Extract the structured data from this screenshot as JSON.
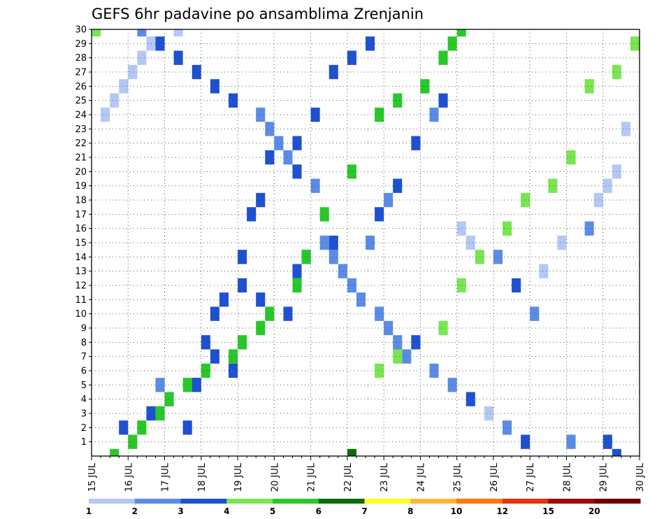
{
  "chart_data": {
    "type": "heatmap",
    "title": "GEFS 6hr padavine po ansamblima Zrenjanin",
    "x_start_day": 15,
    "x_end_day": 30,
    "steps_per_day": 4,
    "x_tick_labels": [
      "15 JUL",
      "16 JUL",
      "17 JUL",
      "18 JUL",
      "19 JUL",
      "20 JUL",
      "21 JUL",
      "22 JUL",
      "23 JUL",
      "24 JUL",
      "25 JUL",
      "26 JUL",
      "27 JUL",
      "28 JUL",
      "29 JUL",
      "30 JUL"
    ],
    "y_tick_labels": [
      "1",
      "2",
      "3",
      "4",
      "5",
      "6",
      "7",
      "8",
      "9",
      "10",
      "11",
      "12",
      "13",
      "14",
      "15",
      "16",
      "17",
      "18",
      "19",
      "20",
      "21",
      "22",
      "23",
      "24",
      "25",
      "26",
      "27",
      "28",
      "29",
      "30"
    ],
    "ylim": [
      0,
      30
    ],
    "grid": true,
    "colorbar": {
      "levels": [
        1,
        2,
        3,
        4,
        5,
        6,
        7,
        8,
        10,
        12,
        15,
        20
      ],
      "labels": [
        "1",
        "2",
        "3",
        "4",
        "5",
        "6",
        "7",
        "8",
        "10",
        "12",
        "15",
        "20"
      ],
      "colors": [
        "#b4c8f5",
        "#5a8ce6",
        "#1e50d2",
        "#78e650",
        "#28c828",
        "#0a6e0a",
        "#ffff1e",
        "#ffb43c",
        "#ff780a",
        "#e6320a",
        "#a00a0a",
        "#6e0000"
      ]
    },
    "cells": [
      [
        2,
        30,
        5
      ],
      [
        3,
        29,
        2
      ],
      [
        3,
        28,
        2
      ],
      [
        3,
        27,
        2
      ],
      [
        3,
        26,
        2
      ],
      [
        3,
        25,
        2
      ],
      [
        2,
        24,
        3
      ],
      [
        2,
        23,
        1
      ],
      [
        2,
        22,
        1
      ],
      [
        2,
        21,
        1
      ],
      [
        3,
        20,
        1
      ],
      [
        2,
        19,
        2
      ],
      [
        2,
        15,
        1
      ],
      [
        2,
        14,
        1
      ],
      [
        2,
        13,
        1
      ],
      [
        2,
        12,
        1
      ],
      [
        2,
        11,
        1
      ],
      [
        2,
        10,
        2
      ],
      [
        2,
        9,
        1
      ],
      [
        2,
        8,
        1
      ],
      [
        2,
        7,
        1
      ],
      [
        2,
        6,
        3
      ],
      [
        2,
        5,
        2
      ],
      [
        3,
        4,
        2
      ],
      [
        1,
        3,
        2
      ],
      [
        2,
        2,
        2
      ],
      [
        3,
        1,
        2
      ],
      [
        2,
        1,
        5
      ],
      [
        3,
        1,
        4
      ],
      [
        3,
        0,
        1
      ],
      [
        3,
        2,
        6
      ],
      [
        3,
        3,
        3
      ],
      [
        2,
        5,
        1
      ],
      [
        2,
        4,
        1
      ],
      [
        3,
        5,
        3
      ],
      [
        3,
        8,
        1
      ],
      [
        3,
        7,
        1
      ],
      [
        3,
        6,
        2
      ],
      [
        3,
        12,
        1
      ],
      [
        3,
        11,
        2
      ],
      [
        3,
        10,
        3
      ],
      [
        3,
        13,
        1
      ],
      [
        3,
        14,
        1
      ],
      [
        3,
        15,
        3
      ],
      [
        6,
        0,
        2
      ],
      [
        2,
        15,
        2
      ],
      [
        3,
        17,
        1
      ],
      [
        2,
        18,
        1
      ],
      [
        3,
        19,
        1
      ],
      [
        3,
        22,
        2
      ],
      [
        2,
        24,
        2
      ],
      [
        3,
        25,
        1
      ],
      [
        1,
        16,
        2
      ],
      [
        1,
        15,
        1
      ],
      [
        2,
        14,
        3
      ],
      [
        3,
        12,
        2
      ],
      [
        2,
        10,
        2
      ],
      [
        1,
        13,
        1
      ],
      [
        1,
        15,
        2
      ],
      [
        2,
        16,
        3
      ],
      [
        1,
        18,
        1
      ],
      [
        1,
        19,
        1
      ],
      [
        1,
        20,
        1
      ],
      [
        1,
        23,
        1
      ],
      [
        1,
        24,
        3
      ],
      [
        1,
        25,
        1
      ],
      [
        1,
        26,
        1
      ],
      [
        1,
        27,
        1
      ],
      [
        1,
        28,
        1
      ],
      [
        1,
        29,
        1
      ],
      [
        1,
        30,
        3
      ],
      [
        3,
        2,
        1
      ],
      [
        3,
        5,
        1
      ],
      [
        3,
        10,
        2
      ],
      [
        3,
        11,
        1
      ],
      [
        3,
        14,
        2
      ],
      [
        3,
        17,
        1
      ],
      [
        3,
        18,
        1
      ],
      [
        3,
        21,
        1
      ],
      [
        3,
        22,
        3
      ],
      [
        3,
        24,
        2
      ],
      [
        3,
        27,
        2
      ],
      [
        3,
        28,
        2
      ],
      [
        3,
        29,
        2
      ],
      [
        4,
        6,
        1
      ],
      [
        4,
        7,
        2
      ],
      [
        3,
        8,
        2
      ],
      [
        4,
        9,
        3
      ],
      [
        4,
        12,
        2
      ],
      [
        4,
        14,
        2
      ],
      [
        4,
        16,
        3
      ],
      [
        4,
        18,
        2
      ],
      [
        4,
        19,
        3
      ],
      [
        4,
        21,
        2
      ],
      [
        4,
        26,
        2
      ],
      [
        4,
        27,
        3
      ],
      [
        4,
        29,
        2
      ],
      [
        4,
        30,
        1
      ],
      [
        5,
        0,
        2
      ],
      [
        5,
        1,
        2
      ],
      [
        5,
        2,
        1
      ],
      [
        5,
        3,
        2
      ],
      [
        5,
        4,
        1
      ],
      [
        5,
        5,
        2
      ],
      [
        5,
        6,
        2
      ],
      [
        5,
        7,
        3
      ],
      [
        5,
        8,
        1
      ],
      [
        5,
        9,
        2
      ],
      [
        5,
        10,
        1
      ],
      [
        5,
        12,
        3
      ],
      [
        5,
        14,
        1
      ],
      [
        5,
        17,
        2
      ],
      [
        5,
        20,
        3
      ],
      [
        5,
        24,
        3
      ],
      [
        5,
        25,
        2
      ],
      [
        5,
        26,
        3
      ],
      [
        5,
        28,
        2
      ],
      [
        5,
        29,
        1
      ],
      [
        5,
        30,
        1
      ]
    ]
  }
}
